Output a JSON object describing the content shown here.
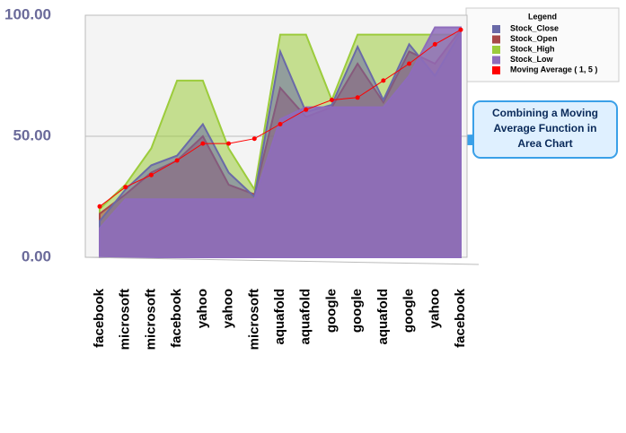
{
  "chart_data": {
    "type": "area",
    "categories": [
      "facebook",
      "microsoft",
      "microsoft",
      "facebook",
      "yahoo",
      "yahoo",
      "microsoft",
      "aquafold",
      "aquafold",
      "google",
      "google",
      "aquafold",
      "google",
      "yahoo",
      "facebook"
    ],
    "series": [
      {
        "name": "Stock_Close",
        "color": "#6a6aa8",
        "values": [
          15,
          28,
          38,
          42,
          55,
          35,
          25,
          85,
          60,
          63,
          87,
          65,
          88,
          75,
          93
        ]
      },
      {
        "name": "Stock_Open",
        "color": "#a84848",
        "values": [
          18,
          26,
          35,
          40,
          50,
          30,
          26,
          70,
          58,
          62,
          80,
          64,
          85,
          80,
          94
        ]
      },
      {
        "name": "Stock_High",
        "color": "#9ccc3c",
        "values": [
          20,
          30,
          45,
          73,
          73,
          45,
          28,
          92,
          92,
          65,
          92,
          92,
          92,
          92,
          92
        ]
      },
      {
        "name": "Stock_Low",
        "color": "#8e6cbc",
        "values": [
          12,
          24,
          24,
          24,
          24,
          24,
          24,
          57,
          62,
          62,
          62,
          62,
          75,
          95,
          95
        ]
      },
      {
        "name": "Moving Average ( 1, 5 )",
        "color": "#ff0000",
        "type": "line",
        "values": [
          21,
          29,
          34,
          40,
          47,
          47,
          49,
          55,
          61,
          65,
          66,
          73,
          80,
          88,
          94
        ]
      }
    ],
    "ylim": [
      0,
      100
    ],
    "yticks": [
      {
        "value": 0,
        "label": "0.00"
      },
      {
        "value": 50,
        "label": "50.00"
      },
      {
        "value": 100,
        "label": "100.00"
      }
    ],
    "grid": true,
    "legend": {
      "title": "Legend",
      "position": "top-right"
    },
    "annotation": [
      "Combining a Moving",
      "Average Function in",
      "Area Chart"
    ]
  }
}
